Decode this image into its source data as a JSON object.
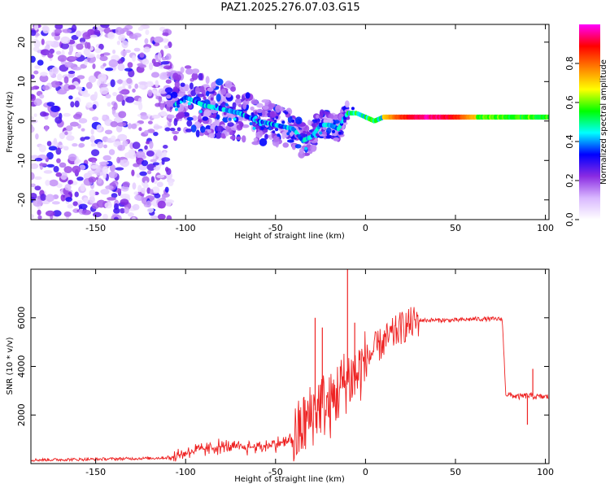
{
  "chart_data": [
    {
      "type": "heatmap",
      "title": "PAZ1.2025.276.07.03.G15",
      "xlabel": "Height of straight line (km)",
      "ylabel": "Frequency (Hz)",
      "xlim": [
        -186,
        102
      ],
      "ylim": [
        -25,
        24.5
      ],
      "xticks": [
        -150,
        -100,
        -50,
        0,
        50,
        100
      ],
      "yticks": [
        -20,
        -10,
        0,
        10,
        20
      ],
      "colorbar": {
        "label": "Normalized spectral amplitude",
        "range": [
          0,
          1
        ],
        "ticks": [
          0.0,
          0.2,
          0.4,
          0.6,
          0.8
        ],
        "colors": [
          "#ffffff",
          "#d9b8ff",
          "#8a2be2",
          "#0000ff",
          "#00ffff",
          "#00ff00",
          "#ffff00",
          "#ff8000",
          "#ff0000",
          "#ff00ff"
        ]
      },
      "ridge": {
        "x": [
          -106,
          -100,
          -90,
          -80,
          -70,
          -60,
          -50,
          -40,
          -35,
          -30,
          -25,
          -20,
          -15,
          -10,
          -5,
          0,
          5,
          10,
          20,
          40,
          60,
          75,
          80,
          90,
          102
        ],
        "y": [
          4,
          6,
          4,
          3,
          2,
          0,
          -1,
          -2,
          -5,
          -4,
          -1,
          -1,
          -2,
          2,
          2,
          1,
          0,
          1,
          1,
          1,
          1,
          1,
          1,
          1,
          1
        ]
      }
    },
    {
      "type": "line",
      "xlabel": "Height of straight line (km)",
      "ylabel": "SNR (10 * v/v)",
      "xlim": [
        -186,
        102
      ],
      "ylim": [
        0,
        8000
      ],
      "xticks": [
        -150,
        -100,
        -50,
        0,
        50,
        100
      ],
      "yticks": [
        2000,
        4000,
        6000
      ],
      "series": [
        {
          "name": "SNR",
          "color": "#ee2222",
          "x": [
            -186,
            -150,
            -120,
            -108,
            -100,
            -90,
            -80,
            -70,
            -60,
            -50,
            -40,
            -35,
            -30,
            -25,
            -20,
            -15,
            -10,
            -5,
            0,
            5,
            10,
            20,
            30,
            40,
            50,
            60,
            70,
            76,
            78,
            85,
            90,
            95,
            102
          ],
          "y": [
            150,
            180,
            220,
            250,
            450,
            600,
            700,
            650,
            700,
            800,
            1000,
            1500,
            2000,
            2500,
            2300,
            3000,
            3500,
            3600,
            4200,
            4700,
            5000,
            5600,
            5900,
            5900,
            5900,
            5950,
            5950,
            5950,
            2850,
            2750,
            2800,
            2750,
            2750
          ]
        }
      ],
      "spikes": [
        {
          "x": -28,
          "y": 6000
        },
        {
          "x": -24,
          "y": 5600
        },
        {
          "x": -14,
          "y": 4000
        },
        {
          "x": -10,
          "y": 8000
        },
        {
          "x": -6,
          "y": 5800
        },
        {
          "x": 90,
          "y": 1600
        },
        {
          "x": 93,
          "y": 3900
        }
      ]
    }
  ]
}
